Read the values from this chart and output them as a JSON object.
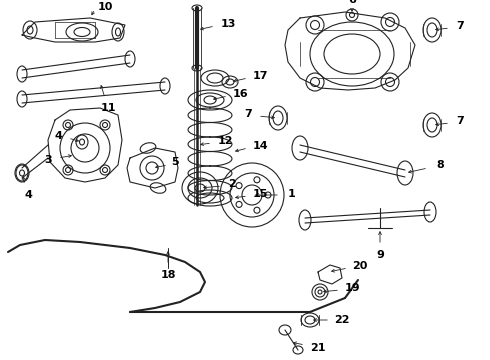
{
  "bg_color": "#ffffff",
  "line_color": "#222222",
  "figsize": [
    4.9,
    3.6
  ],
  "dpi": 100,
  "label_fontsize": 7.5,
  "lw": 0.8
}
